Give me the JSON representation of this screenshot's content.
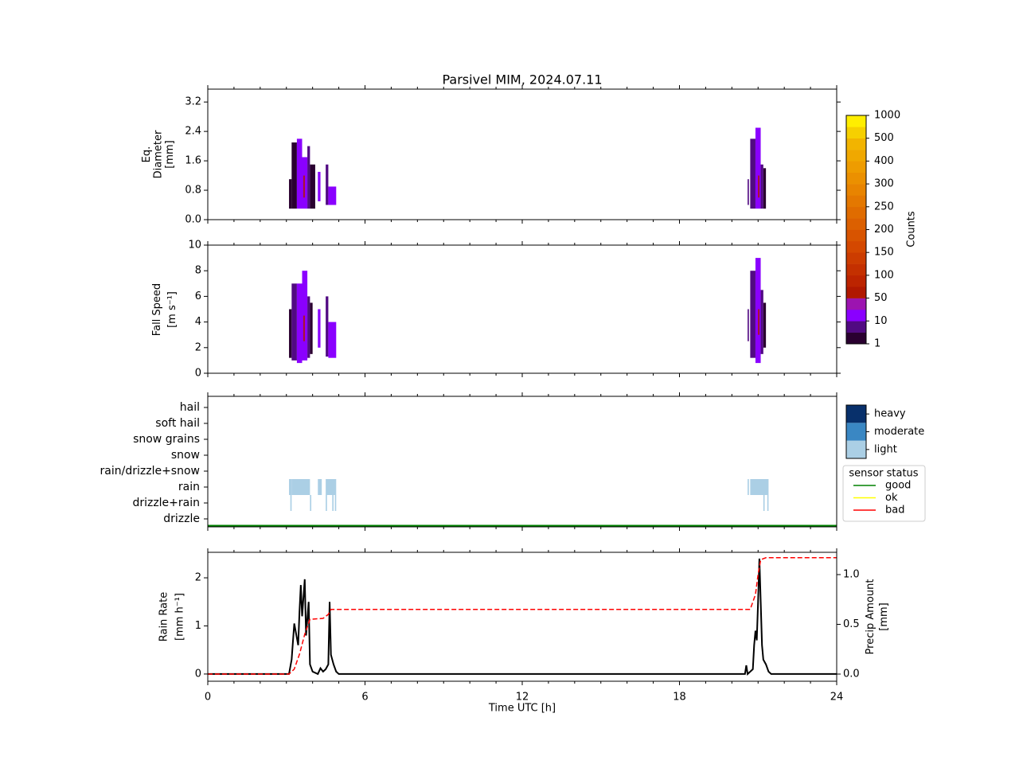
{
  "chart_data": [
    {
      "type": "heatmap",
      "title": "Parsivel MIM, 2024.07.11",
      "ylabel": [
        "Eq.",
        "Diameter",
        "[mm]"
      ],
      "ylim": [
        0,
        3.55
      ],
      "yticks": [
        {
          "value": 0,
          "label": "0.0"
        },
        0.8,
        1.6,
        2.4,
        3.2
      ],
      "cells": [
        [
          3.1,
          3.2,
          0.3,
          1.1,
          3
        ],
        [
          3.2,
          3.4,
          0.3,
          2.1,
          5
        ],
        [
          3.4,
          3.6,
          0.3,
          2.2,
          12
        ],
        [
          3.6,
          3.8,
          0.3,
          1.7,
          20
        ],
        [
          3.8,
          3.9,
          0.3,
          2.0,
          8
        ],
        [
          3.9,
          4.1,
          0.3,
          1.5,
          3
        ],
        [
          4.2,
          4.3,
          0.5,
          1.3,
          10
        ],
        [
          4.5,
          4.6,
          0.4,
          1.5,
          8
        ],
        [
          4.6,
          4.9,
          0.4,
          0.9,
          10
        ],
        [
          3.65,
          3.7,
          0.6,
          1.2,
          60
        ],
        [
          20.6,
          20.65,
          0.4,
          1.1,
          8
        ],
        [
          20.7,
          20.9,
          0.3,
          2.2,
          8
        ],
        [
          20.9,
          21.1,
          0.3,
          2.5,
          15
        ],
        [
          21.1,
          21.2,
          0.3,
          1.5,
          6
        ],
        [
          21.2,
          21.3,
          0.3,
          1.4,
          3
        ],
        [
          21.0,
          21.05,
          0.6,
          1.2,
          60
        ]
      ],
      "colorbar": {
        "label": "Counts",
        "ticks": [
          1,
          10,
          50,
          100,
          150,
          200,
          250,
          300,
          400,
          500,
          1000
        ],
        "colors": [
          "#2a0030",
          "#510a82",
          "#8a00ff",
          "#9c14b0",
          "#b01800",
          "#bc2400",
          "#c43000",
          "#cc3c00",
          "#d44800",
          "#d85400",
          "#dc6000",
          "#e06c00",
          "#e47800",
          "#e88400",
          "#eb9000",
          "#ee9c00",
          "#f0a800",
          "#f2b400",
          "#f6d000",
          "#ffee00"
        ]
      }
    },
    {
      "type": "heatmap",
      "ylabel": [
        "Fall Speed",
        "[m s⁻¹]"
      ],
      "ylim": [
        0,
        10
      ],
      "yticks": [
        0,
        2,
        4,
        6,
        8,
        10
      ],
      "cells": [
        [
          3.1,
          3.2,
          1.2,
          5.0,
          3
        ],
        [
          3.2,
          3.4,
          1.0,
          7.0,
          6
        ],
        [
          3.4,
          3.6,
          0.8,
          7.0,
          12
        ],
        [
          3.6,
          3.8,
          1.0,
          8.0,
          20
        ],
        [
          3.8,
          3.9,
          1.2,
          6.0,
          8
        ],
        [
          3.9,
          4.0,
          1.5,
          5.5,
          3
        ],
        [
          4.2,
          4.3,
          2.0,
          5.0,
          10
        ],
        [
          4.5,
          4.6,
          1.3,
          6.0,
          6
        ],
        [
          4.6,
          4.9,
          1.2,
          4.0,
          10
        ],
        [
          3.65,
          3.7,
          2.5,
          4.5,
          60
        ],
        [
          20.6,
          20.65,
          2.5,
          5.0,
          8
        ],
        [
          20.7,
          20.9,
          1.2,
          8.0,
          8
        ],
        [
          20.9,
          21.1,
          0.8,
          9.0,
          15
        ],
        [
          21.1,
          21.2,
          1.5,
          6.5,
          6
        ],
        [
          21.2,
          21.3,
          2.0,
          5.5,
          3
        ],
        [
          21.0,
          21.05,
          3.0,
          5.0,
          60
        ]
      ]
    },
    {
      "type": "category_strip",
      "categories": [
        "drizzle",
        "drizzle+rain",
        "rain",
        "rain/drizzle+snow",
        "snow",
        "snow grains",
        "soft hail",
        "hail"
      ],
      "intensity": {
        "labels": [
          "light",
          "moderate",
          "heavy"
        ],
        "colors": [
          "#abcfe5",
          "#3a87c3",
          "#08306b"
        ]
      },
      "segments": [
        [
          3.1,
          3.2,
          2,
          0
        ],
        [
          3.2,
          3.9,
          2,
          0
        ],
        [
          4.2,
          4.35,
          2,
          0
        ],
        [
          4.5,
          4.9,
          2,
          0
        ],
        [
          20.6,
          20.65,
          2,
          0
        ],
        [
          20.7,
          21.4,
          2,
          0
        ],
        [
          3.15,
          3.2,
          1,
          0
        ],
        [
          3.9,
          3.95,
          1,
          0
        ],
        [
          4.5,
          4.55,
          1,
          0
        ],
        [
          4.75,
          4.8,
          1,
          0
        ],
        [
          4.85,
          4.9,
          1,
          0
        ],
        [
          21.2,
          21.25,
          1,
          0
        ],
        [
          21.35,
          21.4,
          1,
          0
        ]
      ],
      "sensor_status": {
        "title": "sensor status",
        "entries": [
          {
            "name": "good",
            "color": "#008000"
          },
          {
            "name": "ok",
            "color": "#ffff00"
          },
          {
            "name": "bad",
            "color": "#ff0000"
          }
        ],
        "segments": [
          [
            0,
            24,
            0
          ]
        ]
      }
    },
    {
      "type": "line",
      "xlabel": "Time UTC [h]",
      "ylabel": [
        "Rain Rate",
        "[mm h⁻¹]"
      ],
      "y2label": [
        "Precip Amount",
        "[mm]"
      ],
      "xlim": [
        0,
        24
      ],
      "xticks": [
        0,
        6,
        12,
        18,
        24
      ],
      "ylim": [
        -0.15,
        2.53
      ],
      "yticks": [
        0,
        1,
        2
      ],
      "y2lim": [
        -0.072,
        1.224
      ],
      "y2ticks": [
        {
          "value": 0,
          "label": "0.0"
        },
        0.5,
        {
          "value": 1,
          "label": "1.0"
        }
      ],
      "series": [
        {
          "name": "Rain Rate",
          "color": "#000000",
          "style": "solid",
          "x": [
            0,
            3.1,
            3.2,
            3.3,
            3.35,
            3.45,
            3.5,
            3.55,
            3.6,
            3.7,
            3.75,
            3.85,
            3.9,
            4.0,
            4.2,
            4.3,
            4.4,
            4.5,
            4.6,
            4.65,
            4.7,
            4.8,
            4.9,
            5.0,
            20.5,
            20.55,
            20.6,
            20.8,
            20.85,
            20.9,
            20.95,
            21.0,
            21.05,
            21.1,
            21.15,
            21.2,
            21.3,
            21.4,
            21.5,
            24
          ],
          "values": [
            0,
            0,
            0.3,
            1.05,
            0.9,
            0.6,
            1.3,
            1.85,
            1.2,
            1.97,
            0.8,
            1.5,
            0.2,
            0.05,
            0,
            0.12,
            0.05,
            0.1,
            0.2,
            1.5,
            0.4,
            0.2,
            0.05,
            0,
            0,
            0.18,
            0,
            0.1,
            0.6,
            0.9,
            0.7,
            1.5,
            2.4,
            1.5,
            0.6,
            0.3,
            0.2,
            0.05,
            0,
            0
          ]
        },
        {
          "name": "Precip Amount",
          "color": "#ff0000",
          "style": "dashed",
          "axis": "y2",
          "x": [
            0,
            3.1,
            3.3,
            3.5,
            3.7,
            3.9,
            4.4,
            4.6,
            4.7,
            20.7,
            20.9,
            21.0,
            21.1,
            21.3,
            24
          ],
          "values": [
            0,
            0,
            0.05,
            0.2,
            0.4,
            0.55,
            0.56,
            0.6,
            0.65,
            0.65,
            0.8,
            1.0,
            1.15,
            1.17,
            1.17
          ]
        }
      ]
    }
  ]
}
